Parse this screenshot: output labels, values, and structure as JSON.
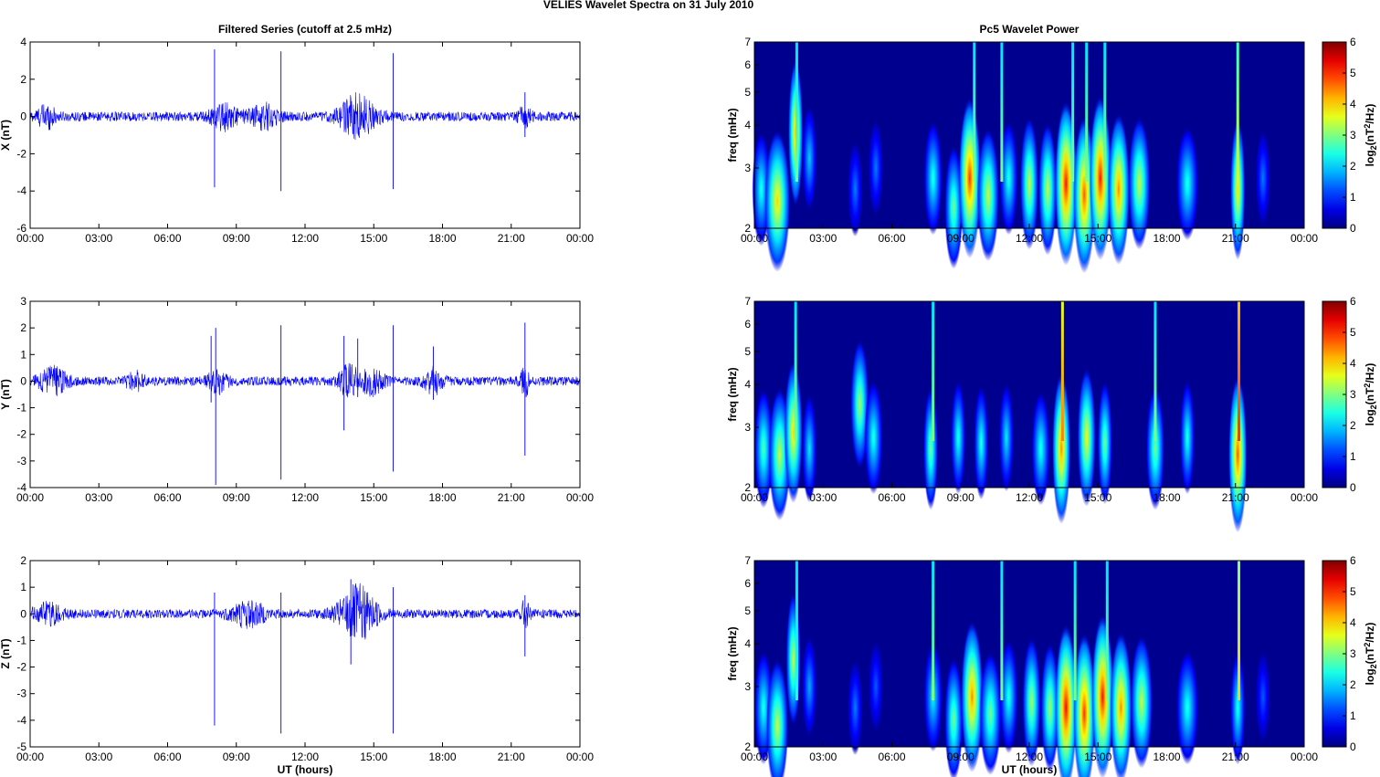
{
  "figure": {
    "suptitle": "VELIES Wavelet Spectra on 31 July      2010",
    "left_title": "Filtered Series (cutoff at 2.5 mHz)",
    "right_title": "Pc5 Wavelet Power",
    "xlabel": "UT (hours)",
    "time_ticks": [
      "00:00",
      "03:00",
      "06:00",
      "09:00",
      "12:00",
      "15:00",
      "18:00",
      "21:00",
      "00:00"
    ]
  },
  "colors": {
    "trace": "#0000ff",
    "background_power": "#00008f"
  },
  "chart_data": [
    {
      "type": "line",
      "name": "series_x",
      "ylabel": "X (nT)",
      "xlim_hours": [
        0,
        24
      ],
      "ylim": [
        -6,
        4
      ],
      "yticks": [
        "4",
        "2",
        "0",
        "-2",
        "-4",
        "-6"
      ],
      "yvals": [
        4,
        2,
        0,
        -2,
        -4,
        -6
      ],
      "noise_amp": 0.25,
      "bursts": [
        {
          "t": 0.7,
          "w": 0.8,
          "a": 0.55
        },
        {
          "t": 8.5,
          "w": 1.2,
          "a": 0.6
        },
        {
          "t": 10.2,
          "w": 1.2,
          "a": 0.6
        },
        {
          "t": 14.3,
          "w": 1.5,
          "a": 1.1
        },
        {
          "t": 21.6,
          "w": 0.5,
          "a": 0.6
        }
      ],
      "spikes": [
        {
          "t": 8.05,
          "top": 3.6,
          "bottom": -3.8
        },
        {
          "t": 10.95,
          "top": 3.5,
          "bottom": -4.0
        },
        {
          "t": 15.85,
          "top": 3.4,
          "bottom": -3.9
        },
        {
          "t": 21.6,
          "top": 1.3,
          "bottom": -1.1
        }
      ]
    },
    {
      "type": "line",
      "name": "series_y",
      "ylabel": "Y (nT)",
      "xlim_hours": [
        0,
        24
      ],
      "ylim": [
        -4,
        3
      ],
      "yticks": [
        "3",
        "2",
        "1",
        "0",
        "-1",
        "-2",
        "-3",
        "-4"
      ],
      "yvals": [
        3,
        2,
        1,
        0,
        -1,
        -2,
        -3,
        -4
      ],
      "noise_amp": 0.17,
      "bursts": [
        {
          "t": 1.0,
          "w": 1.2,
          "a": 0.45
        },
        {
          "t": 4.6,
          "w": 0.8,
          "a": 0.3
        },
        {
          "t": 8.2,
          "w": 0.8,
          "a": 0.4
        },
        {
          "t": 13.9,
          "w": 0.8,
          "a": 0.55
        },
        {
          "t": 14.9,
          "w": 1.0,
          "a": 0.45
        },
        {
          "t": 17.6,
          "w": 0.8,
          "a": 0.45
        },
        {
          "t": 21.6,
          "w": 0.4,
          "a": 0.5
        }
      ],
      "spikes": [
        {
          "t": 7.9,
          "top": 1.7,
          "bottom": -0.8
        },
        {
          "t": 8.1,
          "top": 2.0,
          "bottom": -3.9
        },
        {
          "t": 10.95,
          "top": 2.1,
          "bottom": -3.7
        },
        {
          "t": 13.7,
          "top": 1.7,
          "bottom": -1.85
        },
        {
          "t": 14.3,
          "top": 1.6,
          "bottom": -0.6
        },
        {
          "t": 15.85,
          "top": 2.1,
          "bottom": -3.4
        },
        {
          "t": 17.6,
          "top": 1.3,
          "bottom": -0.7
        },
        {
          "t": 21.6,
          "top": 2.2,
          "bottom": -2.8
        }
      ]
    },
    {
      "type": "line",
      "name": "series_z",
      "ylabel": "Z (nT)",
      "xlim_hours": [
        0,
        24
      ],
      "ylim": [
        -5,
        2
      ],
      "yticks": [
        "2",
        "1",
        "0",
        "-1",
        "-2",
        "-3",
        "-4",
        "-5"
      ],
      "yvals": [
        2,
        1,
        0,
        -1,
        -2,
        -3,
        -4,
        -5
      ],
      "noise_amp": 0.17,
      "bursts": [
        {
          "t": 0.8,
          "w": 1.2,
          "a": 0.35
        },
        {
          "t": 9.5,
          "w": 1.5,
          "a": 0.45
        },
        {
          "t": 14.3,
          "w": 1.6,
          "a": 1.0
        },
        {
          "t": 21.6,
          "w": 0.4,
          "a": 0.45
        }
      ],
      "spikes": [
        {
          "t": 8.05,
          "top": 0.8,
          "bottom": -4.2
        },
        {
          "t": 10.95,
          "top": 0.8,
          "bottom": -4.5
        },
        {
          "t": 14.0,
          "top": 1.3,
          "bottom": -1.9
        },
        {
          "t": 15.85,
          "top": 1.0,
          "bottom": -4.5
        },
        {
          "t": 21.6,
          "top": 0.7,
          "bottom": -1.6
        }
      ]
    },
    {
      "type": "heatmap",
      "name": "power_x",
      "ylabel": "freq (mHz)",
      "xlim_hours": [
        0,
        24
      ],
      "ylim_mhz": [
        2,
        7
      ],
      "yscale": "log",
      "yticks": [
        "7",
        "6",
        "5",
        "4",
        "3",
        "2"
      ],
      "yvals": [
        7,
        6,
        5,
        4,
        3,
        2
      ],
      "colorbar_label": "log2(nT2/Hz)",
      "colorbar_ticks": [
        "6",
        "5",
        "4",
        "3",
        "2",
        "1",
        "0"
      ],
      "clim": [
        0,
        6
      ],
      "blobs": [
        {
          "t": 0.3,
          "s": 0.25,
          "p": 2.5,
          "f": 2.6
        },
        {
          "t": 1.0,
          "s": 0.35,
          "p": 4,
          "f": 2.4
        },
        {
          "t": 1.8,
          "s": 0.2,
          "p": 4.3,
          "f": 3.8
        },
        {
          "t": 2.4,
          "s": 0.2,
          "p": 2.0,
          "f": 3.2
        },
        {
          "t": 4.4,
          "s": 0.2,
          "p": 1.5,
          "f": 2.6
        },
        {
          "t": 5.3,
          "s": 0.2,
          "p": 1.5,
          "f": 3.0
        },
        {
          "t": 7.8,
          "s": 0.25,
          "p": 2.5,
          "f": 2.8
        },
        {
          "t": 8.7,
          "s": 0.25,
          "p": 3,
          "f": 2.3
        },
        {
          "t": 9.4,
          "s": 0.3,
          "p": 5,
          "f": 2.8
        },
        {
          "t": 10.2,
          "s": 0.3,
          "p": 3.5,
          "f": 2.5
        },
        {
          "t": 11.1,
          "s": 0.25,
          "p": 2.5,
          "f": 2.8
        },
        {
          "t": 12.0,
          "s": 0.25,
          "p": 3.5,
          "f": 2.7
        },
        {
          "t": 12.8,
          "s": 0.25,
          "p": 3.5,
          "f": 2.6
        },
        {
          "t": 13.6,
          "s": 0.3,
          "p": 5.2,
          "f": 2.7
        },
        {
          "t": 14.4,
          "s": 0.3,
          "p": 4.8,
          "f": 2.5
        },
        {
          "t": 15.1,
          "s": 0.3,
          "p": 5.2,
          "f": 2.8
        },
        {
          "t": 15.9,
          "s": 0.3,
          "p": 4.5,
          "f": 2.6
        },
        {
          "t": 16.8,
          "s": 0.3,
          "p": 3.5,
          "f": 2.7
        },
        {
          "t": 18.9,
          "s": 0.3,
          "p": 2.5,
          "f": 2.7
        },
        {
          "t": 21.1,
          "s": 0.2,
          "p": 4,
          "f": 2.6
        },
        {
          "t": 22.2,
          "s": 0.2,
          "p": 1.5,
          "f": 2.8
        }
      ],
      "streaks": [
        {
          "t": 1.85,
          "p": 3
        },
        {
          "t": 9.6,
          "p": 3
        },
        {
          "t": 10.8,
          "p": 3
        },
        {
          "t": 13.9,
          "p": 3
        },
        {
          "t": 14.5,
          "p": 3
        },
        {
          "t": 15.3,
          "p": 3
        },
        {
          "t": 21.1,
          "p": 3.5
        }
      ]
    },
    {
      "type": "heatmap",
      "name": "power_y",
      "ylabel": "freq (mHz)",
      "xlim_hours": [
        0,
        24
      ],
      "ylim_mhz": [
        2,
        7
      ],
      "yscale": "log",
      "yticks": [
        "7",
        "6",
        "5",
        "4",
        "3",
        "2"
      ],
      "yvals": [
        7,
        6,
        5,
        4,
        3,
        2
      ],
      "colorbar_label": "log2(nT2/Hz)",
      "colorbar_ticks": [
        "6",
        "5",
        "4",
        "3",
        "2",
        "1",
        "0"
      ],
      "clim": [
        0,
        6
      ],
      "blobs": [
        {
          "t": 0.4,
          "s": 0.25,
          "p": 2.8,
          "f": 2.6
        },
        {
          "t": 1.1,
          "s": 0.3,
          "p": 3.5,
          "f": 2.5
        },
        {
          "t": 1.7,
          "s": 0.25,
          "p": 4,
          "f": 2.9
        },
        {
          "t": 2.4,
          "s": 0.2,
          "p": 2.2,
          "f": 2.6
        },
        {
          "t": 4.6,
          "s": 0.25,
          "p": 3.3,
          "f": 3.5
        },
        {
          "t": 5.2,
          "s": 0.25,
          "p": 2.5,
          "f": 2.8
        },
        {
          "t": 7.7,
          "s": 0.2,
          "p": 3,
          "f": 2.6
        },
        {
          "t": 8.9,
          "s": 0.2,
          "p": 2.5,
          "f": 2.8
        },
        {
          "t": 9.9,
          "s": 0.2,
          "p": 2.5,
          "f": 2.7
        },
        {
          "t": 11.0,
          "s": 0.2,
          "p": 2.2,
          "f": 2.8
        },
        {
          "t": 12.5,
          "s": 0.25,
          "p": 2.5,
          "f": 2.6
        },
        {
          "t": 13.4,
          "s": 0.25,
          "p": 4.5,
          "f": 2.6
        },
        {
          "t": 14.5,
          "s": 0.25,
          "p": 3.8,
          "f": 2.8
        },
        {
          "t": 15.3,
          "s": 0.2,
          "p": 3,
          "f": 2.7
        },
        {
          "t": 17.5,
          "s": 0.25,
          "p": 3,
          "f": 2.6
        },
        {
          "t": 18.9,
          "s": 0.2,
          "p": 2.5,
          "f": 2.8
        },
        {
          "t": 21.1,
          "s": 0.25,
          "p": 4.8,
          "f": 2.5
        }
      ],
      "streaks": [
        {
          "t": 1.8,
          "p": 3
        },
        {
          "t": 7.8,
          "p": 3
        },
        {
          "t": 13.45,
          "p": 4.5
        },
        {
          "t": 17.5,
          "p": 3
        },
        {
          "t": 21.15,
          "p": 5
        }
      ]
    },
    {
      "type": "heatmap",
      "name": "power_z",
      "ylabel": "freq (mHz)",
      "xlim_hours": [
        0,
        24
      ],
      "ylim_mhz": [
        2,
        7
      ],
      "yscale": "log",
      "yticks": [
        "7",
        "6",
        "5",
        "4",
        "3",
        "2"
      ],
      "yvals": [
        7,
        6,
        5,
        4,
        3,
        2
      ],
      "colorbar_label": "log2(nT2/Hz)",
      "colorbar_ticks": [
        "6",
        "5",
        "4",
        "3",
        "2",
        "1",
        "0"
      ],
      "clim": [
        0,
        6
      ],
      "blobs": [
        {
          "t": 0.4,
          "s": 0.25,
          "p": 2.5,
          "f": 2.6
        },
        {
          "t": 1.0,
          "s": 0.3,
          "p": 3.5,
          "f": 2.3
        },
        {
          "t": 1.7,
          "s": 0.2,
          "p": 3.5,
          "f": 3.6
        },
        {
          "t": 2.4,
          "s": 0.2,
          "p": 1.8,
          "f": 3.0
        },
        {
          "t": 4.4,
          "s": 0.2,
          "p": 1.5,
          "f": 2.6
        },
        {
          "t": 5.3,
          "s": 0.2,
          "p": 1.3,
          "f": 3.0
        },
        {
          "t": 7.8,
          "s": 0.25,
          "p": 2.3,
          "f": 2.8
        },
        {
          "t": 8.7,
          "s": 0.25,
          "p": 3,
          "f": 2.4
        },
        {
          "t": 9.5,
          "s": 0.3,
          "p": 4.5,
          "f": 2.8
        },
        {
          "t": 10.3,
          "s": 0.3,
          "p": 3,
          "f": 2.5
        },
        {
          "t": 11.1,
          "s": 0.25,
          "p": 2.5,
          "f": 2.8
        },
        {
          "t": 12.1,
          "s": 0.25,
          "p": 3.3,
          "f": 2.7
        },
        {
          "t": 12.9,
          "s": 0.25,
          "p": 3.3,
          "f": 2.6
        },
        {
          "t": 13.6,
          "s": 0.3,
          "p": 5.3,
          "f": 2.6
        },
        {
          "t": 14.4,
          "s": 0.3,
          "p": 5,
          "f": 2.5
        },
        {
          "t": 15.2,
          "s": 0.3,
          "p": 5.2,
          "f": 2.8
        },
        {
          "t": 16.0,
          "s": 0.3,
          "p": 4.5,
          "f": 2.6
        },
        {
          "t": 16.9,
          "s": 0.3,
          "p": 3.5,
          "f": 2.7
        },
        {
          "t": 18.9,
          "s": 0.3,
          "p": 2.5,
          "f": 2.6
        },
        {
          "t": 21.1,
          "s": 0.2,
          "p": 2.5,
          "f": 2.6
        },
        {
          "t": 22.2,
          "s": 0.2,
          "p": 1.3,
          "f": 2.8
        }
      ],
      "streaks": [
        {
          "t": 1.85,
          "p": 2.5
        },
        {
          "t": 7.8,
          "p": 3
        },
        {
          "t": 10.8,
          "p": 3
        },
        {
          "t": 14.0,
          "p": 3
        },
        {
          "t": 15.4,
          "p": 3
        },
        {
          "t": 21.15,
          "p": 4
        }
      ]
    }
  ]
}
